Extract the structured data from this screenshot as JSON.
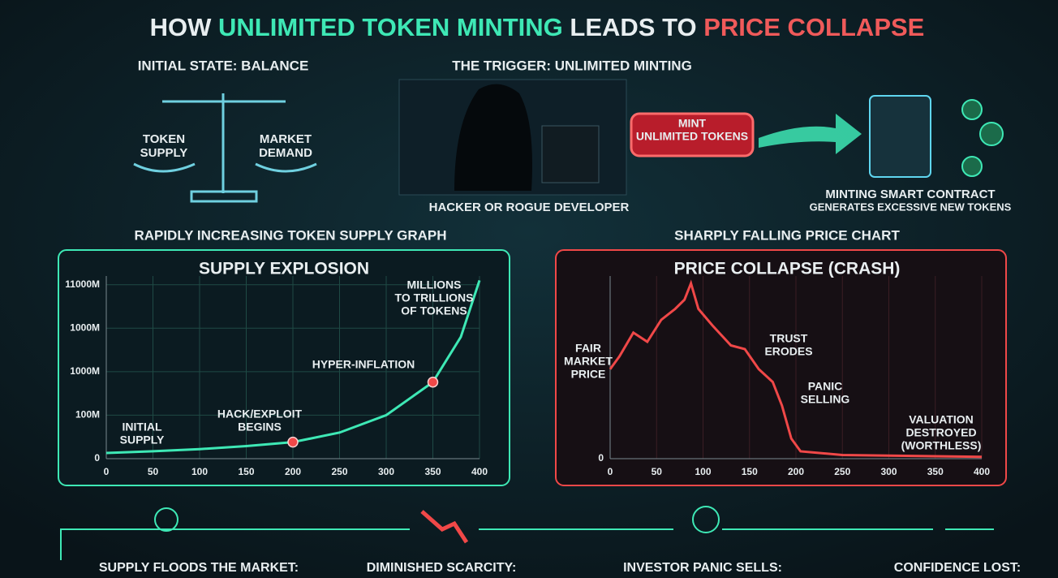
{
  "header": {
    "title": [
      "HOW ",
      "UNLIMITED TOKEN MINTING",
      " LEADS TO ",
      "PRICE COLLAPSE"
    ]
  },
  "balance": {
    "heading": "INITIAL STATE: BALANCE",
    "left": [
      "TOKEN",
      "SUPPLY"
    ],
    "right": [
      "MARKET",
      "DEMAND"
    ]
  },
  "trigger": {
    "heading": "THE TRIGGER: UNLIMITED MINTING",
    "actor": "HACKER OR ROGUE DEVELOPER",
    "button": [
      "MINT",
      "UNLIMITED TOKENS"
    ],
    "contract": "MINTING SMART CONTRACT",
    "contract_note": "GENERATES EXCESSIVE NEW TOKENS"
  },
  "chart_data": [
    {
      "type": "line",
      "heading": "RAPIDLY INCREASING TOKEN SUPPLY GRAPH",
      "title": "SUPPLY EXPLOSION",
      "x": [
        0,
        50,
        100,
        150,
        200,
        250,
        300,
        350,
        380,
        400
      ],
      "values": [
        0.13,
        0.17,
        0.22,
        0.29,
        0.38,
        0.6,
        1.0,
        1.76,
        2.8,
        4.1
      ],
      "color": "#3ee8b5",
      "xlim": [
        0,
        400
      ],
      "xticks": [
        0,
        50,
        100,
        150,
        200,
        250,
        300,
        350,
        400
      ],
      "ylim": [
        0,
        4.2
      ],
      "yticks": [
        0,
        {
          "value": 1,
          "label": "100M"
        },
        {
          "value": 2,
          "label": "1000M"
        },
        {
          "value": 3,
          "label": "1000M"
        },
        {
          "value": 4,
          "label": "11000M"
        }
      ],
      "grid": true,
      "annotations": [
        {
          "lines": [
            "MILLIONS",
            "TO TRILLIONS",
            "OF TOKENS"
          ]
        },
        {
          "lines": [
            "HYPER-INFLATION"
          ]
        },
        {
          "lines": [
            "HACK/EXPLOIT",
            "BEGINS"
          ]
        },
        {
          "lines": [
            "INITIAL",
            "SUPPLY"
          ]
        }
      ]
    },
    {
      "type": "line",
      "heading": "SHARPLY FALLING PRICE CHART",
      "title": "PRICE COLLAPSE (CRASH)",
      "x": [
        0,
        10,
        25,
        40,
        55,
        70,
        80,
        87,
        95,
        110,
        130,
        145,
        160,
        175,
        185,
        195,
        205,
        250,
        400
      ],
      "values": [
        49,
        56,
        69,
        64,
        76,
        82,
        87,
        96,
        82,
        73,
        62,
        60,
        49,
        42,
        29,
        11,
        4,
        2,
        1
      ],
      "color": "#f04848",
      "xlim": [
        0,
        400
      ],
      "xticks": [
        0,
        50,
        100,
        150,
        200,
        250,
        300,
        350,
        400
      ],
      "ylim": [
        0,
        100
      ],
      "yticks": [
        0
      ],
      "grid": true,
      "annotations": [
        {
          "lines": [
            "FAIR",
            "MARKET",
            "PRICE"
          ]
        },
        {
          "lines": [
            "TRUST",
            "ERODES"
          ]
        },
        {
          "lines": [
            "PANIC",
            "SELLING"
          ]
        },
        {
          "lines": [
            "VALUATION",
            "DESTROYED",
            "(WORTHLESS)"
          ]
        }
      ]
    }
  ],
  "steps": [
    "SUPPLY FLOODS THE MARKET:",
    "DIMINISHED SCARCITY:",
    "INVESTOR PANIC SELLS:",
    "CONFIDENCE LOST:"
  ]
}
